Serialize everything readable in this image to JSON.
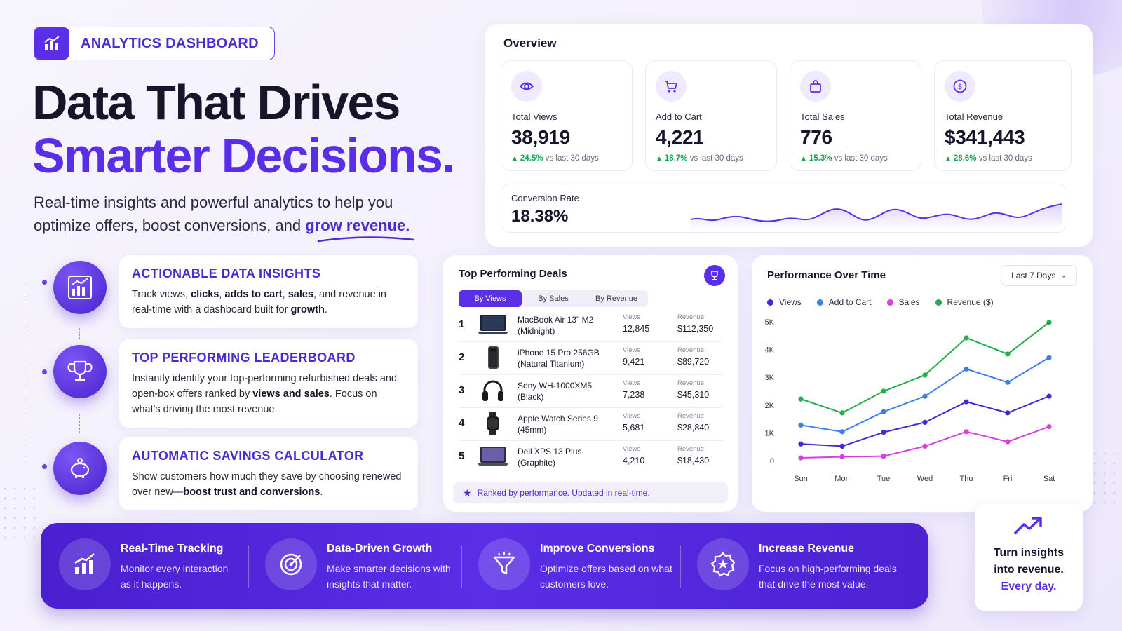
{
  "badge": {
    "label": "ANALYTICS DASHBOARD",
    "icon": "bar-chart-icon"
  },
  "hero": {
    "line1": "Data That Drives",
    "line2": "Smarter Decisions.",
    "subtitle_a": "Real-time insights and powerful analytics to help you optimize offers, boost conversions, and ",
    "subtitle_highlight": "grow revenue."
  },
  "features": [
    {
      "title": "ACTIONABLE DATA INSIGHTS",
      "t1": "Track views, ",
      "b1": "clicks",
      "t2": ", ",
      "b2": "adds to cart",
      "t3": ", ",
      "b3": "sales",
      "t4": ", and revenue in real-time with a dashboard built for ",
      "b4": "growth",
      "t5": "."
    },
    {
      "title": "TOP PERFORMING LEADERBOARD",
      "t1": "Instantly identify your top-performing refurbished deals and open-box offers ranked by ",
      "b1": "views and sales",
      "t2": ". Focus on what's driving the most revenue."
    },
    {
      "title": "AUTOMATIC SAVINGS CALCULATOR",
      "t1": "Show customers how much they save by choosing renewed over new—",
      "b1": "boost trust and conversions",
      "t2": "."
    }
  ],
  "overview": {
    "title": "Overview",
    "stats": [
      {
        "label": "Total Views",
        "value": "38,919",
        "delta": "24.5%",
        "suffix": "vs last 30 days",
        "icon": "eye-icon"
      },
      {
        "label": "Add to Cart",
        "value": "4,221",
        "delta": "18.7%",
        "suffix": "vs last 30 days",
        "icon": "cart-icon"
      },
      {
        "label": "Total Sales",
        "value": "776",
        "delta": "15.3%",
        "suffix": "vs last 30 days",
        "icon": "bag-icon"
      },
      {
        "label": "Total Revenue",
        "value": "$341,443",
        "delta": "28.6%",
        "suffix": "vs last 30 days",
        "icon": "dollar-icon"
      }
    ],
    "conversion": {
      "label": "Conversion Rate",
      "value": "18.38%"
    }
  },
  "deals": {
    "title": "Top Performing Deals",
    "tabs": [
      "By Views",
      "By Sales",
      "By Revenue"
    ],
    "active_tab": "By Views",
    "views_label": "Views",
    "revenue_label": "Revenue",
    "rows": [
      {
        "rank": "1",
        "name1": "MacBook Air 13\" M2",
        "name2": "(Midnight)",
        "views": "12,845",
        "revenue": "$112,350",
        "thumb": "laptop"
      },
      {
        "rank": "2",
        "name1": "iPhone 15 Pro 256GB",
        "name2": "(Natural Titanium)",
        "views": "9,421",
        "revenue": "$89,720",
        "thumb": "phone"
      },
      {
        "rank": "3",
        "name1": "Sony WH-1000XM5",
        "name2": "(Black)",
        "views": "7,238",
        "revenue": "$45,310",
        "thumb": "headphones"
      },
      {
        "rank": "4",
        "name1": "Apple Watch Series 9",
        "name2": "(45mm)",
        "views": "5,681",
        "revenue": "$28,840",
        "thumb": "watch"
      },
      {
        "rank": "5",
        "name1": "Dell XPS 13 Plus",
        "name2": "(Graphite)",
        "views": "4,210",
        "revenue": "$18,430",
        "thumb": "laptop2"
      }
    ],
    "footer": "Ranked by performance. Updated in real-time."
  },
  "chart_data": {
    "type": "line",
    "title": "Performance Over Time",
    "period": "Last 7 Days",
    "categories": [
      "Sun",
      "Mon",
      "Tue",
      "Wed",
      "Thu",
      "Fri",
      "Sat"
    ],
    "yticks": [
      "0",
      "1K",
      "2K",
      "3K",
      "4K",
      "5K"
    ],
    "ylim": [
      0,
      5000
    ],
    "series": [
      {
        "name": "Views",
        "color": "#4a25d8",
        "values": [
          600,
          520,
          1020,
          1380,
          2120,
          1720,
          2320
        ]
      },
      {
        "name": "Add to Cart",
        "color": "#3d7fe8",
        "values": [
          1280,
          1040,
          1760,
          2320,
          3300,
          2820,
          3710
        ]
      },
      {
        "name": "Sales",
        "color": "#d63fe0",
        "values": [
          100,
          140,
          160,
          520,
          1040,
          680,
          1220
        ]
      },
      {
        "name": "Revenue ($)",
        "color": "#22ad4c",
        "values": [
          2220,
          1720,
          2500,
          3080,
          4420,
          3840,
          4980
        ]
      }
    ],
    "grid": false,
    "legend": "top-left"
  },
  "band": [
    {
      "title": "Real-Time Tracking",
      "l1": "Monitor every interaction",
      "l2": "as it happens."
    },
    {
      "title": "Data-Driven Growth",
      "l1": "Make smarter decisions with",
      "l2": "insights that matter."
    },
    {
      "title": "Improve Conversions",
      "l1": "Optimize offers based on what",
      "l2": "customers love."
    },
    {
      "title": "Increase Revenue",
      "l1": "Focus on high-performing deals",
      "l2": "that drive the most value."
    }
  ],
  "cta": {
    "l1": "Turn insights",
    "l2": "into revenue.",
    "l3": "Every day."
  }
}
